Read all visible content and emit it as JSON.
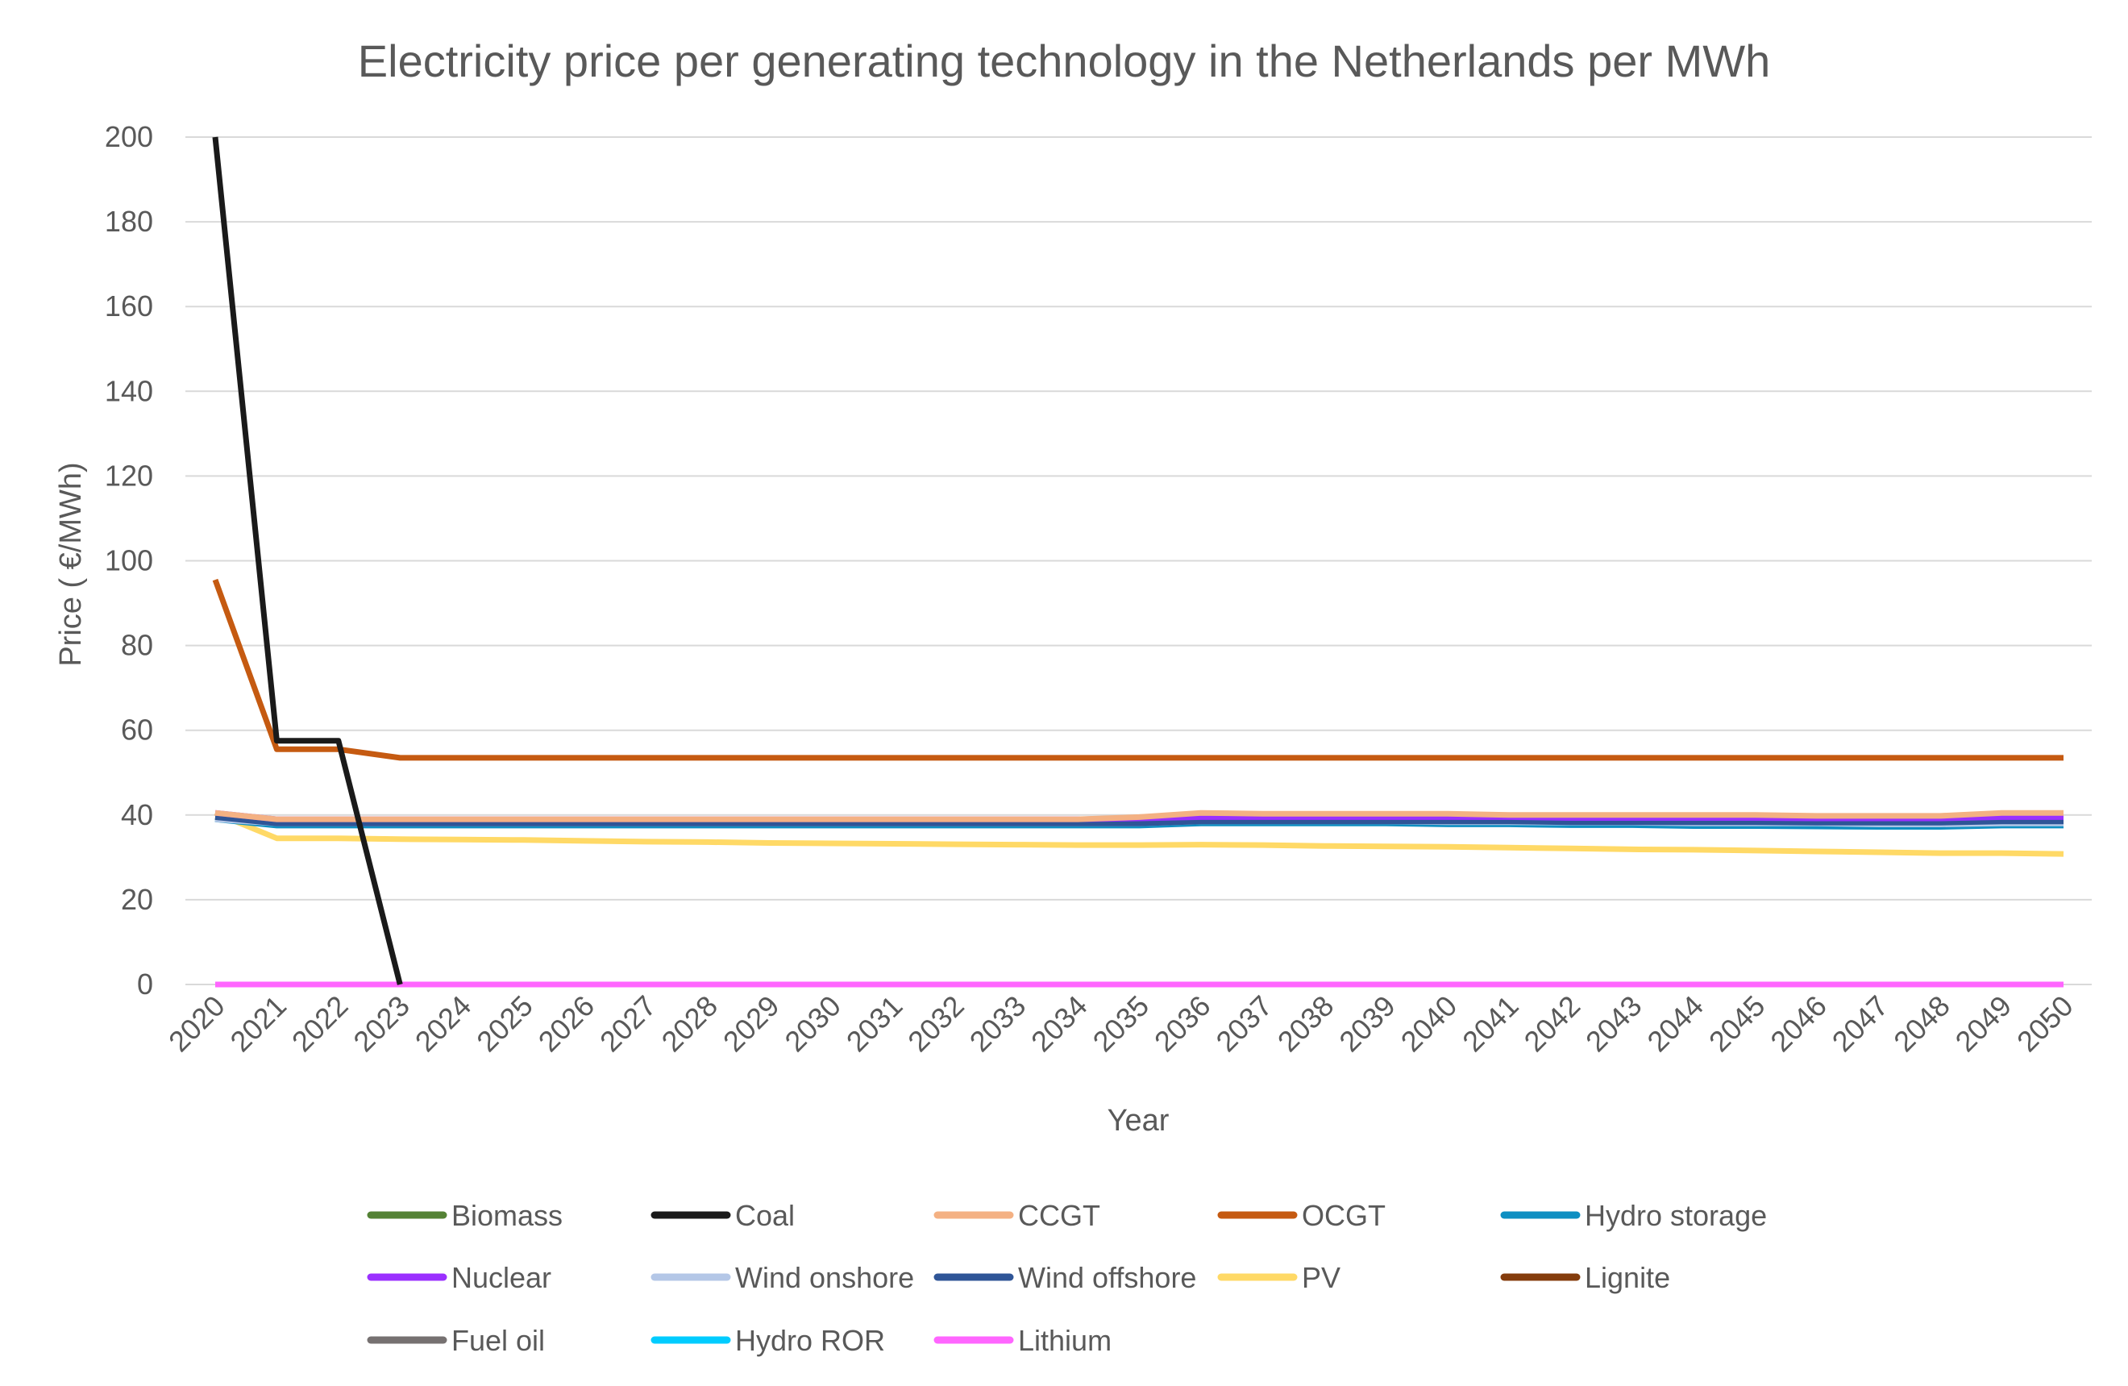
{
  "chart_data": {
    "type": "line",
    "title": "Electricity price per generating technology in the Netherlands per MWh",
    "xlabel": "Year",
    "ylabel": "Price ( €/MWh)",
    "ylim": [
      0,
      200
    ],
    "yticks": [
      0,
      20,
      40,
      60,
      80,
      100,
      120,
      140,
      160,
      180,
      200
    ],
    "grid": true,
    "legend_position": "bottom",
    "x": [
      "2020",
      "2021",
      "2022",
      "2023",
      "2024",
      "2025",
      "2026",
      "2027",
      "2028",
      "2029",
      "2030",
      "2031",
      "2032",
      "2033",
      "2034",
      "2035",
      "2036",
      "2037",
      "2038",
      "2039",
      "2040",
      "2041",
      "2042",
      "2043",
      "2044",
      "2045",
      "2046",
      "2047",
      "2048",
      "2049",
      "2050"
    ],
    "series": [
      {
        "name": "Biomass",
        "color": "#548235",
        "values": [
          39.5,
          38.5,
          38.5,
          38.5,
          38.5,
          38.5,
          38.5,
          38.5,
          38.5,
          38.5,
          38.5,
          38.5,
          38.5,
          38.5,
          38.5,
          38.5,
          39.0,
          39.0,
          39.0,
          39.0,
          39.0,
          39.0,
          39.0,
          39.0,
          39.0,
          39.0,
          39.0,
          39.0,
          39.0,
          39.0,
          39.0
        ]
      },
      {
        "name": "Coal",
        "color": "#1a1a1a",
        "values": [
          200,
          57.5,
          57.5,
          0,
          null,
          null,
          null,
          null,
          null,
          null,
          null,
          null,
          null,
          null,
          null,
          null,
          null,
          null,
          null,
          null,
          null,
          null,
          null,
          null,
          null,
          null,
          null,
          null,
          null,
          null,
          null
        ]
      },
      {
        "name": "CCGT",
        "color": "#f4b183",
        "values": [
          40.5,
          39.0,
          39.0,
          39.0,
          39.0,
          39.0,
          39.0,
          39.0,
          39.0,
          39.0,
          39.0,
          39.0,
          39.0,
          39.0,
          39.0,
          39.5,
          40.5,
          40.3,
          40.3,
          40.3,
          40.3,
          40.0,
          40.0,
          40.0,
          40.0,
          40.0,
          39.8,
          39.8,
          39.8,
          40.5,
          40.5
        ]
      },
      {
        "name": "OCGT",
        "color": "#c55a11",
        "values": [
          95.5,
          55.5,
          55.5,
          53.5,
          53.5,
          53.5,
          53.5,
          53.5,
          53.5,
          53.5,
          53.5,
          53.5,
          53.5,
          53.5,
          53.5,
          53.5,
          53.5,
          53.5,
          53.5,
          53.5,
          53.5,
          53.5,
          53.5,
          53.5,
          53.5,
          53.5,
          53.5,
          53.5,
          53.5,
          53.5,
          53.5
        ]
      },
      {
        "name": "Hydro storage",
        "color": "#0e8fc2",
        "values": [
          39.0,
          37.5,
          37.5,
          37.5,
          37.5,
          37.5,
          37.5,
          37.5,
          37.5,
          37.5,
          37.5,
          37.5,
          37.5,
          37.5,
          37.5,
          37.5,
          38.0,
          38.0,
          38.0,
          38.0,
          37.8,
          37.8,
          37.6,
          37.6,
          37.4,
          37.4,
          37.3,
          37.2,
          37.2,
          37.5,
          37.5
        ]
      },
      {
        "name": "Nuclear",
        "color": "#9b30ff",
        "values": [
          40.5,
          39.0,
          39.0,
          39.0,
          39.0,
          39.0,
          39.0,
          39.0,
          39.0,
          39.0,
          39.0,
          39.0,
          39.0,
          39.0,
          39.0,
          39.2,
          39.5,
          39.5,
          39.5,
          39.5,
          39.5,
          39.5,
          39.3,
          39.3,
          39.3,
          39.3,
          39.2,
          39.2,
          39.2,
          39.5,
          39.5
        ]
      },
      {
        "name": "Wind onshore",
        "color": "#b4c7e7",
        "values": [
          39.0,
          38.0,
          38.0,
          38.0,
          38.0,
          38.0,
          38.0,
          38.0,
          38.0,
          38.0,
          38.0,
          38.0,
          38.0,
          38.0,
          38.0,
          38.0,
          38.5,
          38.5,
          38.5,
          38.5,
          38.3,
          38.3,
          38.2,
          38.2,
          38.0,
          38.0,
          38.0,
          37.8,
          37.8,
          38.0,
          38.0
        ]
      },
      {
        "name": "Wind offshore",
        "color": "#2f5597",
        "values": [
          39.5,
          38.0,
          38.0,
          38.0,
          38.0,
          38.0,
          38.0,
          38.0,
          38.0,
          38.0,
          38.0,
          38.0,
          38.0,
          38.0,
          38.0,
          38.0,
          38.5,
          38.5,
          38.5,
          38.5,
          38.5,
          38.5,
          38.3,
          38.3,
          38.3,
          38.3,
          38.2,
          38.2,
          38.2,
          38.5,
          38.5
        ]
      },
      {
        "name": "PV",
        "color": "#ffd966",
        "values": [
          40.5,
          34.5,
          34.5,
          34.3,
          34.2,
          34.1,
          33.9,
          33.7,
          33.6,
          33.4,
          33.3,
          33.2,
          33.1,
          33.0,
          32.9,
          32.9,
          33.0,
          32.9,
          32.7,
          32.6,
          32.5,
          32.3,
          32.1,
          31.9,
          31.8,
          31.6,
          31.4,
          31.2,
          31.0,
          31.0,
          30.8
        ]
      },
      {
        "name": "Lignite",
        "color": "#843c0c",
        "values": [
          null,
          null,
          null,
          null,
          null,
          null,
          null,
          null,
          null,
          null,
          null,
          null,
          null,
          null,
          null,
          null,
          null,
          null,
          null,
          null,
          null,
          null,
          null,
          null,
          null,
          null,
          null,
          null,
          null,
          null,
          null
        ]
      },
      {
        "name": "Fuel oil",
        "color": "#767171",
        "values": [
          null,
          null,
          null,
          null,
          null,
          null,
          null,
          null,
          null,
          null,
          null,
          null,
          null,
          null,
          null,
          null,
          null,
          null,
          null,
          null,
          null,
          null,
          null,
          null,
          null,
          null,
          null,
          null,
          null,
          null,
          null
        ]
      },
      {
        "name": "Hydro ROR",
        "color": "#00ccff",
        "values": [
          null,
          null,
          null,
          null,
          null,
          null,
          null,
          null,
          null,
          null,
          null,
          null,
          null,
          null,
          null,
          null,
          null,
          null,
          null,
          null,
          null,
          null,
          null,
          null,
          null,
          null,
          null,
          null,
          null,
          null,
          null
        ]
      },
      {
        "name": "Lithium",
        "color": "#ff66ff",
        "values": [
          0,
          0,
          0,
          0,
          0,
          0,
          0,
          0,
          0,
          0,
          0,
          0,
          0,
          0,
          0,
          0,
          0,
          0,
          0,
          0,
          0,
          0,
          0,
          0,
          0,
          0,
          0,
          0,
          0,
          0,
          0
        ]
      }
    ]
  }
}
